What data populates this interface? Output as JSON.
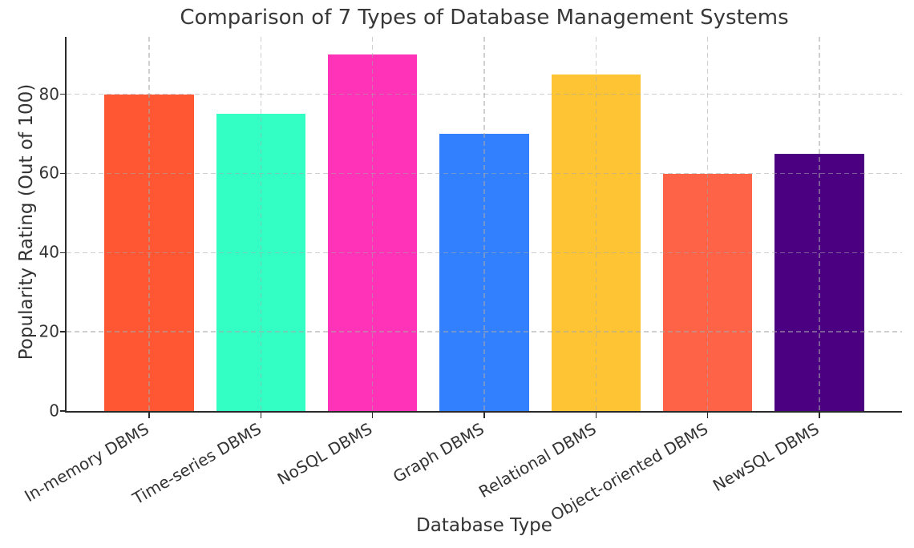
{
  "chart_data": {
    "type": "bar",
    "title": "Comparison of 7 Types of Database Management Systems",
    "xlabel": "Database Type",
    "ylabel": "Popularity Rating (Out of 100)",
    "categories": [
      "In-memory DBMS",
      "Time-series DBMS",
      "NoSQL DBMS",
      "Graph DBMS",
      "Relational DBMS",
      "Object-oriented DBMS",
      "NewSQL DBMS"
    ],
    "values": [
      80,
      75,
      90,
      70,
      85,
      60,
      65
    ],
    "colors": [
      "#FF5733",
      "#33FFC4",
      "#FF33B8",
      "#3380FF",
      "#FFC433",
      "#FF6347",
      "#4B0082"
    ],
    "ylim": [
      0,
      94.5
    ],
    "yticks": [
      0,
      20,
      40,
      60,
      80
    ],
    "bar_width_fraction": 0.8,
    "x_tick_rotation_deg": 30,
    "grid": {
      "horizontal": true,
      "vertical": true,
      "line_style": "dashed",
      "grid_color": "#cfcfcf",
      "grid_above_bars": true
    },
    "legend": "none",
    "style": {
      "text_color": "#333333",
      "spine_color": "#2a2a2a",
      "background": "#ffffff"
    }
  }
}
